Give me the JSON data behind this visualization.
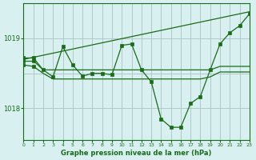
{
  "bg_color": "#d8f0f0",
  "grid_color": "#b0c8c8",
  "line_color": "#1a6b1a",
  "title": "Graphe pression niveau de la mer (hPa)",
  "ylabel_ticks": [
    1018,
    1019
  ],
  "xlim": [
    0,
    23
  ],
  "ylim": [
    1017.55,
    1019.5
  ],
  "x": [
    0,
    1,
    2,
    3,
    4,
    5,
    6,
    7,
    8,
    9,
    10,
    11,
    12,
    13,
    14,
    15,
    16,
    17,
    18,
    19,
    20,
    21,
    22,
    23
  ],
  "line_main": [
    1018.72,
    1018.72,
    1018.55,
    1018.45,
    1018.88,
    1018.62,
    1018.46,
    1018.5,
    1018.5,
    1018.48,
    1018.9,
    1018.92,
    1018.55,
    1018.38,
    1017.85,
    1017.73,
    1017.73,
    1018.07,
    1018.17,
    1018.55,
    1018.92,
    1019.08,
    1019.18,
    1019.35
  ],
  "line_flat1": [
    1018.68,
    1018.68,
    1018.55,
    1018.55,
    1018.55,
    1018.55,
    1018.55,
    1018.55,
    1018.55,
    1018.55,
    1018.55,
    1018.55,
    1018.55,
    1018.55,
    1018.55,
    1018.55,
    1018.55,
    1018.55,
    1018.55,
    1018.55,
    1018.6,
    1018.6,
    1018.6,
    1018.6
  ],
  "line_flat2": [
    1018.62,
    1018.6,
    1018.5,
    1018.42,
    1018.42,
    1018.42,
    1018.42,
    1018.42,
    1018.42,
    1018.42,
    1018.42,
    1018.42,
    1018.42,
    1018.42,
    1018.42,
    1018.42,
    1018.42,
    1018.42,
    1018.42,
    1018.45,
    1018.52,
    1018.52,
    1018.52,
    1018.52
  ],
  "line_diag": [
    [
      0,
      23
    ],
    [
      1018.7,
      1019.38
    ]
  ]
}
